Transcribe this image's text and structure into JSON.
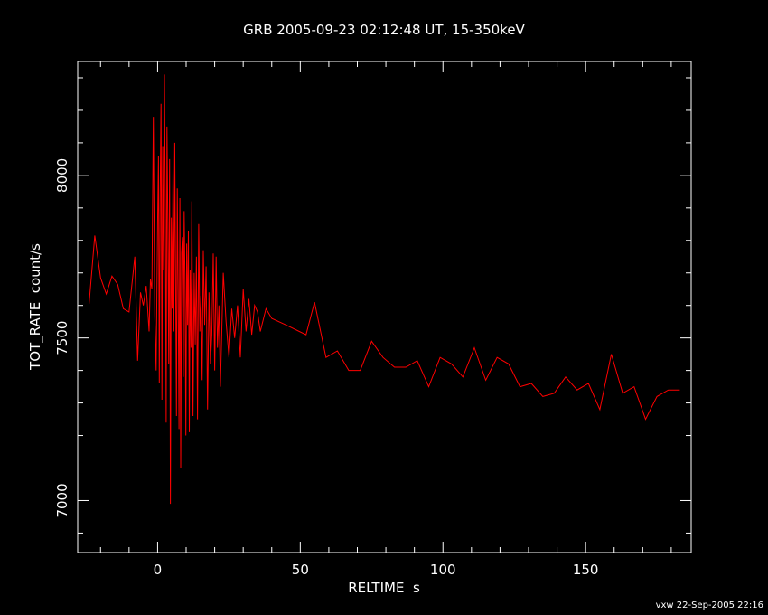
{
  "chart_data": {
    "type": "line",
    "title": "GRB 2005-09-23 02:12:48 UT, 15-350keV",
    "xlabel": "RELTIME  s",
    "ylabel": "TOT_RATE  count/s",
    "footer": "vxw 22-Sep-2005 22:16",
    "xlim": [
      -28,
      187
    ],
    "ylim": [
      6840,
      8350
    ],
    "x_ticks_major": [
      0,
      50,
      100,
      150
    ],
    "x_tick_labels": [
      "0",
      "50",
      "100",
      "150"
    ],
    "x_ticks_minor_step": 10,
    "y_ticks_major": [
      7000,
      7500,
      8000
    ],
    "y_tick_labels": [
      "7000",
      "7500",
      "8000"
    ],
    "y_ticks_minor_step": 100,
    "grid": false,
    "background_color": "#000000",
    "axis_color": "#ffffff",
    "series": [
      {
        "color": "#ff0000",
        "x": [
          -24,
          -22,
          -20,
          -18,
          -16,
          -14,
          -12,
          -10,
          -8,
          -7,
          -6,
          -5,
          -4,
          -3,
          -2.5,
          -2,
          -1.5,
          -1,
          -0.5,
          0,
          0.3,
          0.6,
          0.9,
          1.2,
          1.5,
          1.8,
          2.1,
          2.4,
          2.7,
          3.0,
          3.3,
          3.6,
          3.9,
          4.2,
          4.5,
          4.8,
          5.1,
          5.4,
          5.7,
          6.0,
          6.3,
          6.6,
          6.9,
          7.2,
          7.5,
          7.8,
          8.1,
          8.4,
          8.7,
          9.0,
          9.3,
          9.6,
          9.9,
          10.2,
          10.5,
          10.8,
          11.1,
          11.4,
          11.7,
          12.0,
          12.4,
          12.8,
          13.2,
          13.6,
          14.0,
          14.4,
          14.8,
          15.2,
          15.6,
          16.0,
          16.5,
          17.0,
          17.5,
          18.0,
          18.5,
          19.0,
          19.5,
          20.0,
          20.5,
          21.0,
          21.5,
          22.0,
          23.0,
          24.0,
          25.0,
          26.0,
          27.0,
          28.0,
          29.0,
          30.0,
          31.0,
          32.0,
          33.0,
          34.0,
          35.0,
          36.0,
          38.0,
          40.0,
          45.0,
          52.0,
          55.0,
          59.0,
          63.0,
          67.0,
          71.0,
          75.0,
          79.0,
          83.0,
          87.0,
          91.0,
          95.0,
          99.0,
          103.0,
          107.0,
          111.0,
          115.0,
          119.0,
          123.0,
          127.0,
          131.0,
          135.0,
          139.0,
          143.0,
          147.0,
          151.0,
          155.0,
          159.0,
          163.0,
          167.0,
          171.0,
          175.0,
          179.0,
          183.0
        ],
        "values": [
          7605,
          7815,
          7685,
          7635,
          7690,
          7665,
          7590,
          7580,
          7750,
          7430,
          7640,
          7600,
          7660,
          7520,
          7680,
          7650,
          8180,
          7570,
          7400,
          7850,
          8060,
          7360,
          7950,
          8220,
          7310,
          8090,
          7710,
          8310,
          7880,
          7240,
          8150,
          7850,
          7420,
          8050,
          6990,
          7870,
          7590,
          8020,
          7520,
          8100,
          7710,
          7260,
          7960,
          7640,
          7220,
          7930,
          7100,
          7760,
          7810,
          7380,
          7890,
          7690,
          7200,
          7790,
          7540,
          7830,
          7210,
          7710,
          7470,
          7920,
          7260,
          7700,
          7480,
          7750,
          7250,
          7850,
          7520,
          7630,
          7370,
          7770,
          7540,
          7720,
          7280,
          7640,
          7420,
          7510,
          7760,
          7400,
          7750,
          7470,
          7600,
          7350,
          7700,
          7550,
          7440,
          7590,
          7500,
          7600,
          7440,
          7650,
          7520,
          7620,
          7510,
          7600,
          7580,
          7520,
          7590,
          7560,
          7540,
          7510,
          7610,
          7440,
          7460,
          7400,
          7400,
          7490,
          7440,
          7410,
          7410,
          7430,
          7350,
          7440,
          7420,
          7380,
          7470,
          7370,
          7440,
          7420,
          7350,
          7360,
          7320,
          7330,
          7380,
          7340,
          7360,
          7280,
          7450,
          7330,
          7350,
          7250,
          7320,
          7340,
          7340
        ]
      }
    ]
  }
}
